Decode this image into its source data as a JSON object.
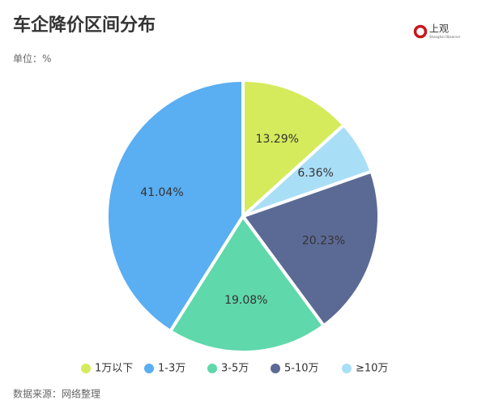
{
  "chart_data": {
    "type": "pie",
    "title": "车企降价区间分布",
    "subtitle": "单位：%",
    "source": "数据来源：网络整理",
    "categories": [
      "1万以下",
      "1-3万",
      "3-5万",
      "5-10万",
      "≥10万"
    ],
    "values": [
      13.29,
      41.04,
      19.08,
      20.23,
      6.36
    ],
    "value_labels": [
      "13.29%",
      "41.04%",
      "19.08%",
      "20.23%",
      "6.36%"
    ],
    "colors": [
      "#d5eb5c",
      "#5aaef2",
      "#5fd8ab",
      "#5b6a95",
      "#a9def7"
    ],
    "legend": "bottom"
  },
  "logo": {
    "name": "上观",
    "subtitle": "Shanghai Observer"
  }
}
